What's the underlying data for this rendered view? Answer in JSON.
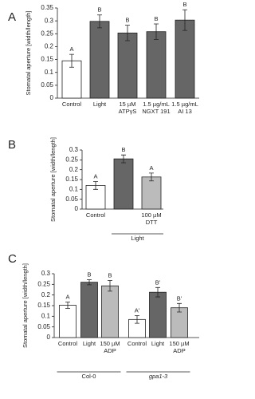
{
  "chart_data": [
    {
      "type": "bar",
      "panel_label": "A",
      "ylabel": "Stomatal aperture [width/length]",
      "categories": [
        "Control",
        "Light",
        "15 µM\nATPγS",
        "1.5 µg/mL\nNGXT 191",
        "1.5 µg/mL\nAI 13"
      ],
      "values": [
        0.145,
        0.298,
        0.253,
        0.258,
        0.303
      ],
      "errors": [
        0.025,
        0.025,
        0.03,
        0.03,
        0.04
      ],
      "letters": [
        "A",
        "B",
        "B",
        "B",
        "B"
      ],
      "colors": [
        "#ffffff",
        "#666666",
        "#666666",
        "#666666",
        "#666666"
      ],
      "ylim": [
        0,
        0.35
      ],
      "yticks": [
        0,
        0.05,
        0.1,
        0.15,
        0.2,
        0.25,
        0.3,
        0.35
      ]
    },
    {
      "type": "bar",
      "panel_label": "B",
      "ylabel": "Stomatal aperture [width/length]",
      "categories": [
        "Control",
        null,
        "100 µM\nDTT"
      ],
      "values": [
        0.12,
        0.255,
        0.163
      ],
      "errors": [
        0.02,
        0.02,
        0.02
      ],
      "letters": [
        "A",
        "B",
        "A"
      ],
      "colors": [
        "#ffffff",
        "#666666",
        "#bbbbbb"
      ],
      "groups": [
        {
          "label": "Light",
          "start": 1,
          "end": 2
        }
      ],
      "ylim": [
        0,
        0.3
      ],
      "yticks": [
        0,
        0.05,
        0.1,
        0.15,
        0.2,
        0.25,
        0.3
      ]
    },
    {
      "type": "bar",
      "panel_label": "C",
      "ylabel": "Stomatal aperture [width/length]",
      "categories": [
        "Control",
        "Light",
        "150 µM\nADP",
        "Control",
        "Light",
        "150 µM\nADP"
      ],
      "values": [
        0.152,
        0.26,
        0.243,
        0.085,
        0.213,
        0.14
      ],
      "errors": [
        0.015,
        0.012,
        0.025,
        0.018,
        0.022,
        0.02
      ],
      "letters": [
        "A",
        "B",
        "B",
        "A'",
        "B'",
        "B'"
      ],
      "colors": [
        "#ffffff",
        "#666666",
        "#bbbbbb",
        "#ffffff",
        "#666666",
        "#bbbbbb"
      ],
      "groups": [
        {
          "label": "Col-0",
          "start": 0,
          "end": 2
        },
        {
          "label": "gpa1-3",
          "start": 3,
          "end": 5
        }
      ],
      "ylim": [
        0,
        0.3
      ],
      "yticks": [
        0,
        0.05,
        0.1,
        0.15,
        0.2,
        0.25,
        0.3
      ]
    }
  ]
}
